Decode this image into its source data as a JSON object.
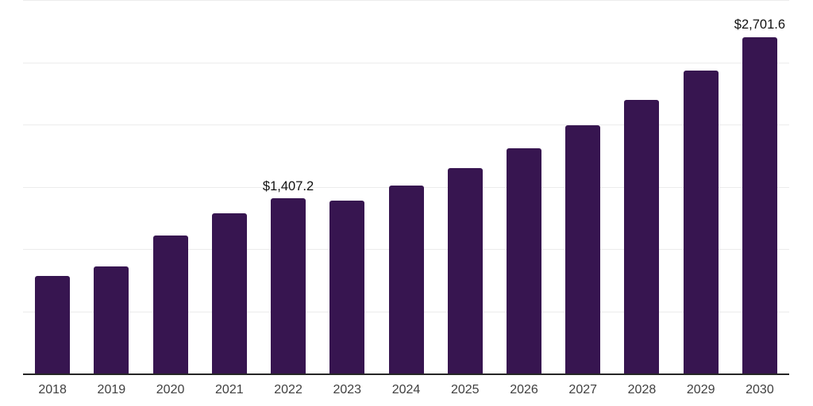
{
  "chart_data": {
    "type": "bar",
    "title": "",
    "xlabel": "",
    "ylabel": "",
    "categories": [
      "2018",
      "2019",
      "2020",
      "2021",
      "2022",
      "2023",
      "2024",
      "2025",
      "2026",
      "2027",
      "2028",
      "2029",
      "2030"
    ],
    "values": [
      785,
      858,
      1110,
      1287,
      1407.2,
      1386,
      1510,
      1650,
      1807,
      1995,
      2198,
      2433,
      2701.6
    ],
    "value_labels": [
      null,
      null,
      null,
      null,
      "$1,407.2",
      null,
      null,
      null,
      null,
      null,
      null,
      null,
      "$2,701.6"
    ],
    "ylim": [
      0,
      3000
    ],
    "gridline_step": 500,
    "grid": true,
    "legend": false,
    "y_axis_labels_visible": false,
    "colors": {
      "bar": "#371550",
      "gridline": "#ececec",
      "axis_line": "#262626",
      "tick_label": "#404040",
      "value_label": "#111111",
      "background": "#ffffff"
    }
  }
}
